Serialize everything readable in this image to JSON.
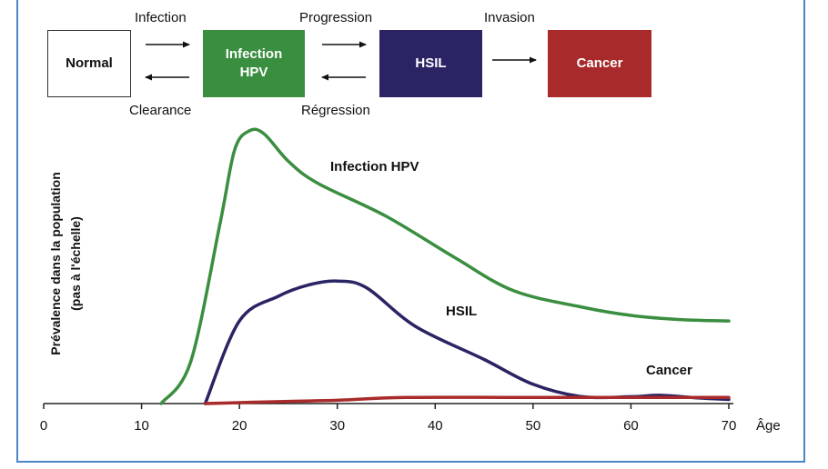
{
  "states": {
    "normal": "Normal",
    "infection": "Infection\nHPV",
    "hsil": "HSIL",
    "cancer": "Cancer"
  },
  "transitions": {
    "infection": "Infection",
    "clearance": "Clearance",
    "progression": "Progression",
    "regression": "Régression",
    "invasion": "Invasion"
  },
  "colors": {
    "infection": "#3a8e3f",
    "hsil": "#2b2464",
    "cancer": "#a82a2a",
    "frame": "#4a86c8"
  },
  "chart_data": {
    "type": "line",
    "ylabel": "Prévalence dans la population\n(pas à l'échelle)",
    "xlabel": "Âge",
    "xlim": [
      0,
      70
    ],
    "ylim": [
      0,
      100
    ],
    "xticks": [
      0,
      10,
      20,
      30,
      40,
      50,
      60,
      70
    ],
    "series": [
      {
        "name": "Infection HPV",
        "color": "#3a8e3f",
        "points": [
          [
            12,
            0
          ],
          [
            15,
            15
          ],
          [
            18,
            65
          ],
          [
            19.5,
            92
          ],
          [
            21,
            99
          ],
          [
            22.5,
            98
          ],
          [
            25,
            88
          ],
          [
            28,
            80
          ],
          [
            35,
            68
          ],
          [
            42,
            53
          ],
          [
            48,
            41
          ],
          [
            55,
            35
          ],
          [
            60,
            32
          ],
          [
            65,
            30.5
          ],
          [
            70,
            30
          ]
        ]
      },
      {
        "name": "HSIL",
        "color": "#2b2464",
        "points": [
          [
            16.5,
            0
          ],
          [
            20,
            30
          ],
          [
            24,
            39
          ],
          [
            27,
            43
          ],
          [
            30,
            44.5
          ],
          [
            33,
            42
          ],
          [
            38,
            28
          ],
          [
            45,
            16
          ],
          [
            50,
            7
          ],
          [
            55,
            2.5
          ],
          [
            60,
            2.5
          ],
          [
            63,
            3
          ],
          [
            67,
            2
          ],
          [
            70,
            1.5
          ]
        ]
      },
      {
        "name": "Cancer",
        "color": "#a82a2a",
        "points": [
          [
            16.5,
            0
          ],
          [
            25,
            0.8
          ],
          [
            30,
            1.2
          ],
          [
            37,
            2.2
          ],
          [
            50,
            2.2
          ],
          [
            70,
            2.2
          ]
        ]
      }
    ]
  }
}
